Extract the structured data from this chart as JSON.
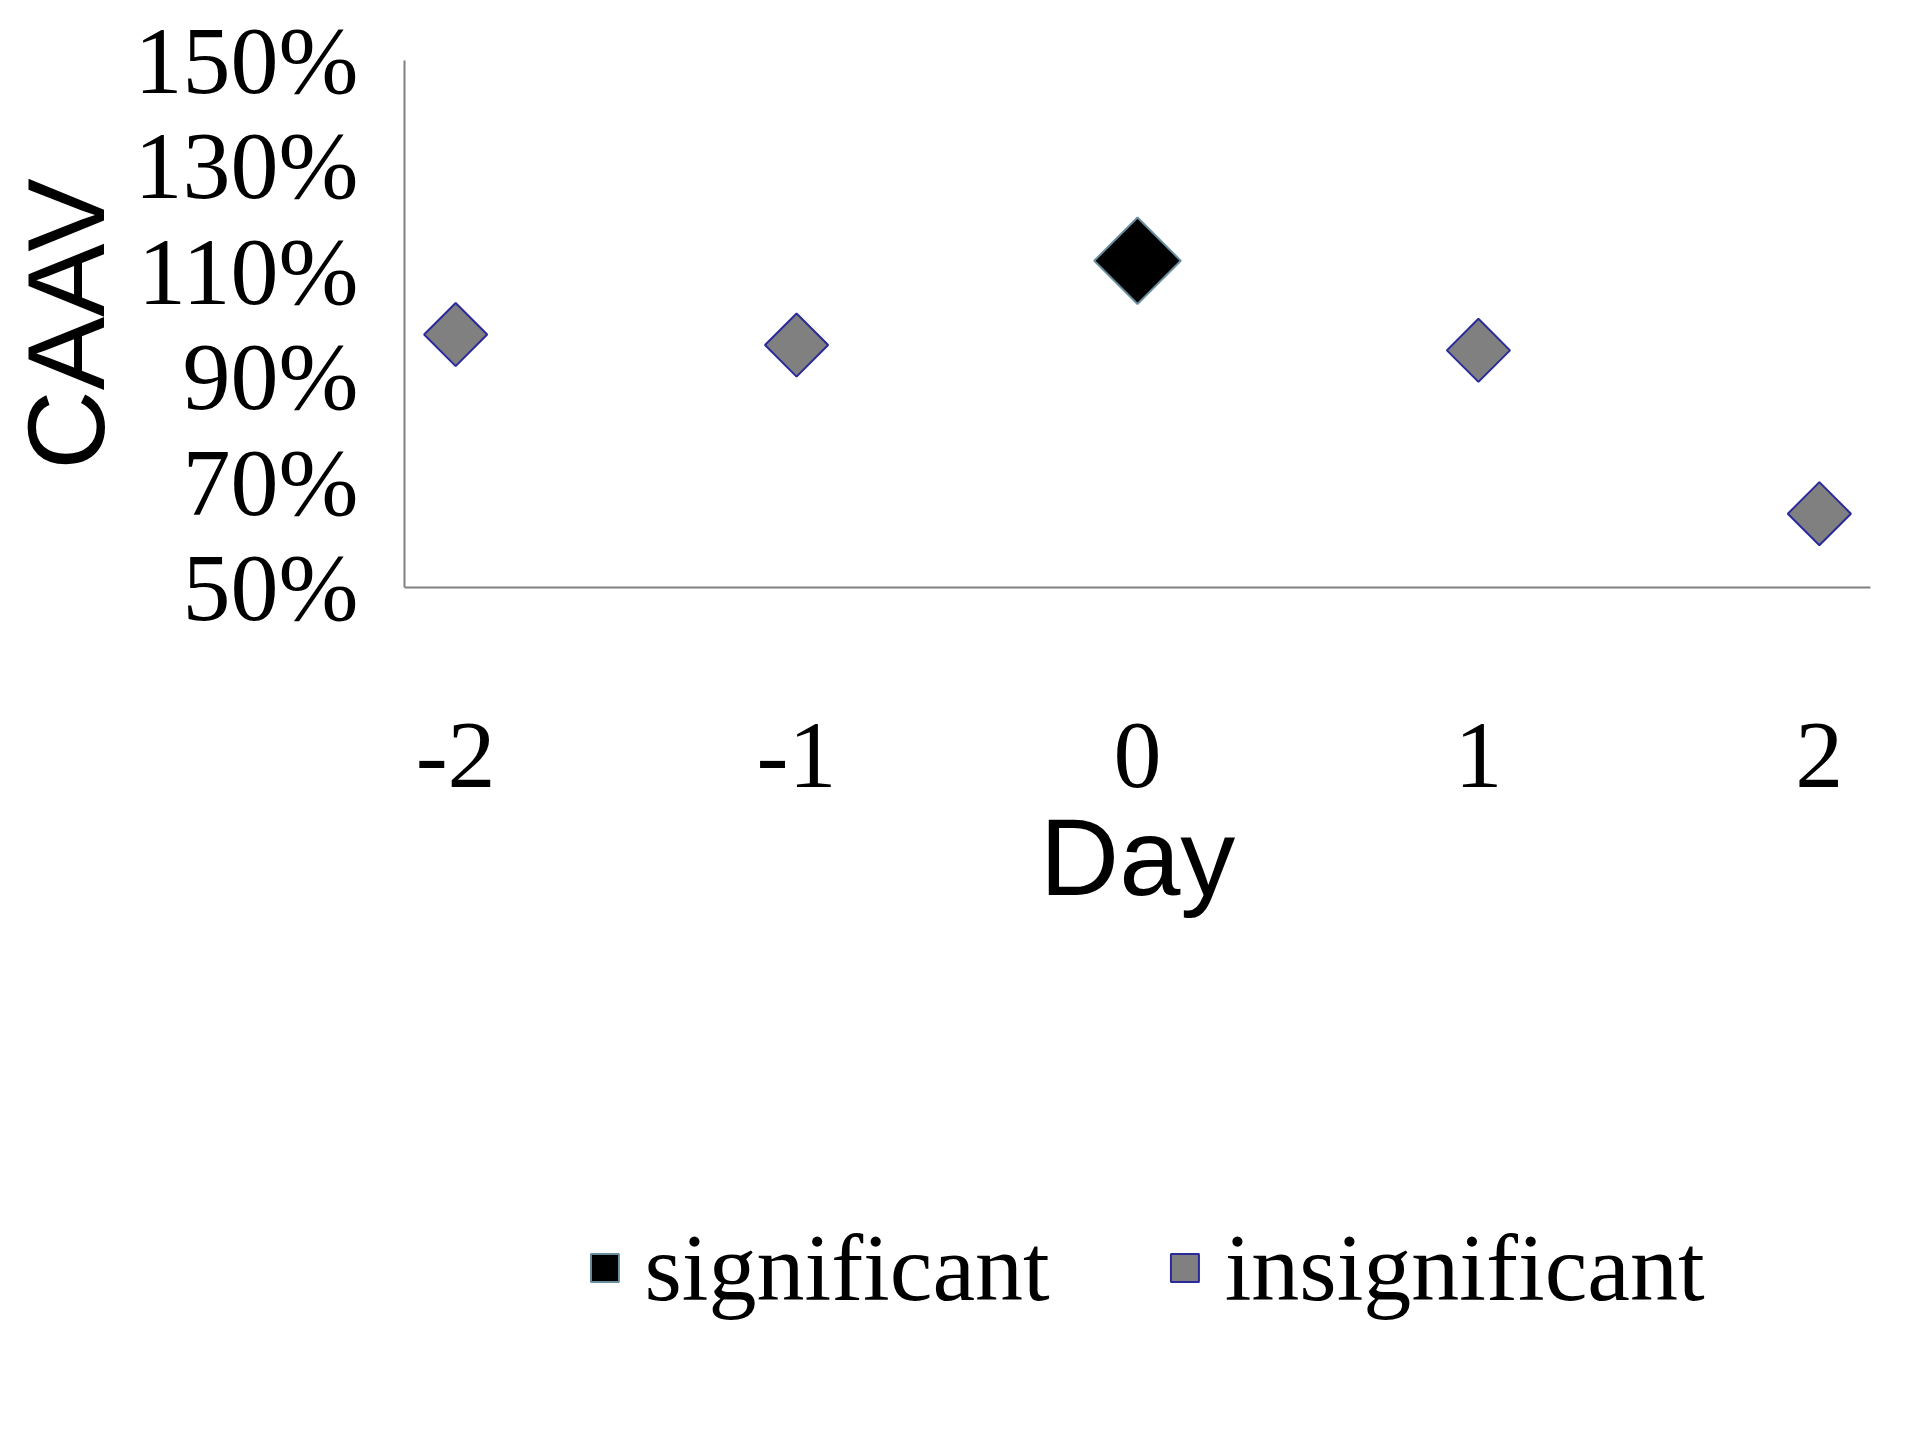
{
  "chart_data": {
    "type": "scatter",
    "xlabel": "Day",
    "ylabel": "CAAV",
    "xlim": [
      -2.15,
      2.15
    ],
    "xticks": [
      -2,
      -1,
      0,
      1,
      2
    ],
    "ylim": [
      50,
      150
    ],
    "yticks": [
      {
        "value": 50,
        "label": "50%"
      },
      {
        "value": 70,
        "label": "70%"
      },
      {
        "value": 90,
        "label": "90%"
      },
      {
        "value": 110,
        "label": "110%"
      },
      {
        "value": 130,
        "label": "130%"
      },
      {
        "value": 150,
        "label": "150%"
      }
    ],
    "series": [
      {
        "name": "significant",
        "color": "#000000",
        "x": [
          0
        ],
        "values": [
          112
        ]
      },
      {
        "name": "insignificant",
        "color": "#808080",
        "x": [
          -2,
          -1,
          1,
          2
        ],
        "values": [
          98,
          96,
          95,
          64
        ]
      }
    ],
    "marker": "diamond",
    "grid": false,
    "legend": "bottom"
  }
}
